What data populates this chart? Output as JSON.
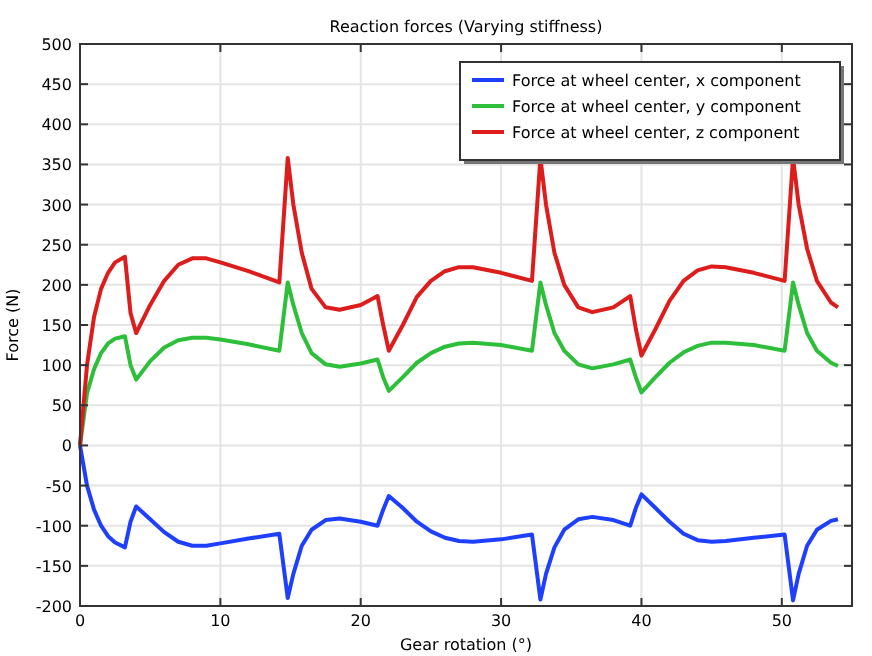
{
  "chart_data": {
    "type": "line",
    "title": "Reaction forces (Varying stiffness)",
    "xlabel": "Gear rotation (°)",
    "ylabel": "Force (N)",
    "x": [
      0,
      0.5,
      1,
      1.5,
      2,
      2.5,
      3.2,
      3.6,
      4,
      5,
      6,
      7,
      8,
      9,
      10,
      12,
      14.2,
      14.8,
      15.2,
      15.8,
      16.5,
      17.5,
      18.5,
      20,
      21.2,
      21.6,
      22,
      23,
      24,
      25,
      26,
      27,
      28,
      30,
      32.2,
      32.8,
      33.2,
      33.8,
      34.5,
      35.5,
      36.5,
      38,
      39.2,
      39.6,
      40,
      41,
      42,
      43,
      44,
      45,
      46,
      48,
      50.2,
      50.8,
      51.2,
      51.8,
      52.5,
      53.5,
      54
    ],
    "series": [
      {
        "name": "Force at wheel center, x component",
        "color": "#1f3fff",
        "values": [
          0,
          -50,
          -80,
          -100,
          -113,
          -121,
          -127,
          -95,
          -76,
          -92,
          -108,
          -120,
          -125,
          -125,
          -122,
          -116,
          -110,
          -190,
          -160,
          -125,
          -105,
          -93,
          -91,
          -95,
          -100,
          -80,
          -63,
          -78,
          -95,
          -107,
          -115,
          -119,
          -120,
          -117,
          -111,
          -192,
          -160,
          -127,
          -105,
          -92,
          -89,
          -93,
          -100,
          -78,
          -61,
          -78,
          -95,
          -110,
          -118,
          -120,
          -119,
          -115,
          -111,
          -193,
          -160,
          -125,
          -105,
          -94,
          -92
        ]
      },
      {
        "name": "Force at wheel center, y component",
        "color": "#2dbf3a",
        "values": [
          0,
          65,
          95,
          115,
          127,
          133,
          136,
          100,
          82,
          105,
          122,
          131,
          134,
          134,
          132,
          126,
          118,
          203,
          175,
          140,
          115,
          101,
          98,
          102,
          107,
          85,
          68,
          85,
          103,
          115,
          123,
          127,
          128,
          125,
          118,
          203,
          175,
          140,
          118,
          101,
          96,
          101,
          107,
          85,
          66,
          85,
          103,
          116,
          124,
          128,
          128,
          125,
          118,
          203,
          175,
          140,
          118,
          103,
          99
        ]
      },
      {
        "name": "Force at wheel center, z component",
        "color": "#dd1c1c",
        "values": [
          0,
          100,
          160,
          195,
          215,
          228,
          235,
          165,
          140,
          175,
          205,
          225,
          233,
          233,
          228,
          217,
          203,
          358,
          300,
          240,
          195,
          172,
          169,
          175,
          186,
          150,
          118,
          150,
          185,
          205,
          217,
          222,
          222,
          215,
          205,
          358,
          300,
          240,
          200,
          172,
          166,
          172,
          186,
          145,
          112,
          145,
          180,
          205,
          218,
          223,
          222,
          215,
          205,
          358,
          300,
          245,
          205,
          178,
          172
        ]
      }
    ],
    "xlim": [
      0,
      55
    ],
    "xticks": [
      0,
      10,
      20,
      30,
      40,
      50
    ],
    "ylim": [
      -200,
      500
    ],
    "yticks": [
      -200,
      -150,
      -100,
      -50,
      0,
      50,
      100,
      150,
      200,
      250,
      300,
      350,
      400,
      450,
      500
    ],
    "grid": true,
    "legend": "top right",
    "line_style": "solid",
    "marker": "none"
  }
}
